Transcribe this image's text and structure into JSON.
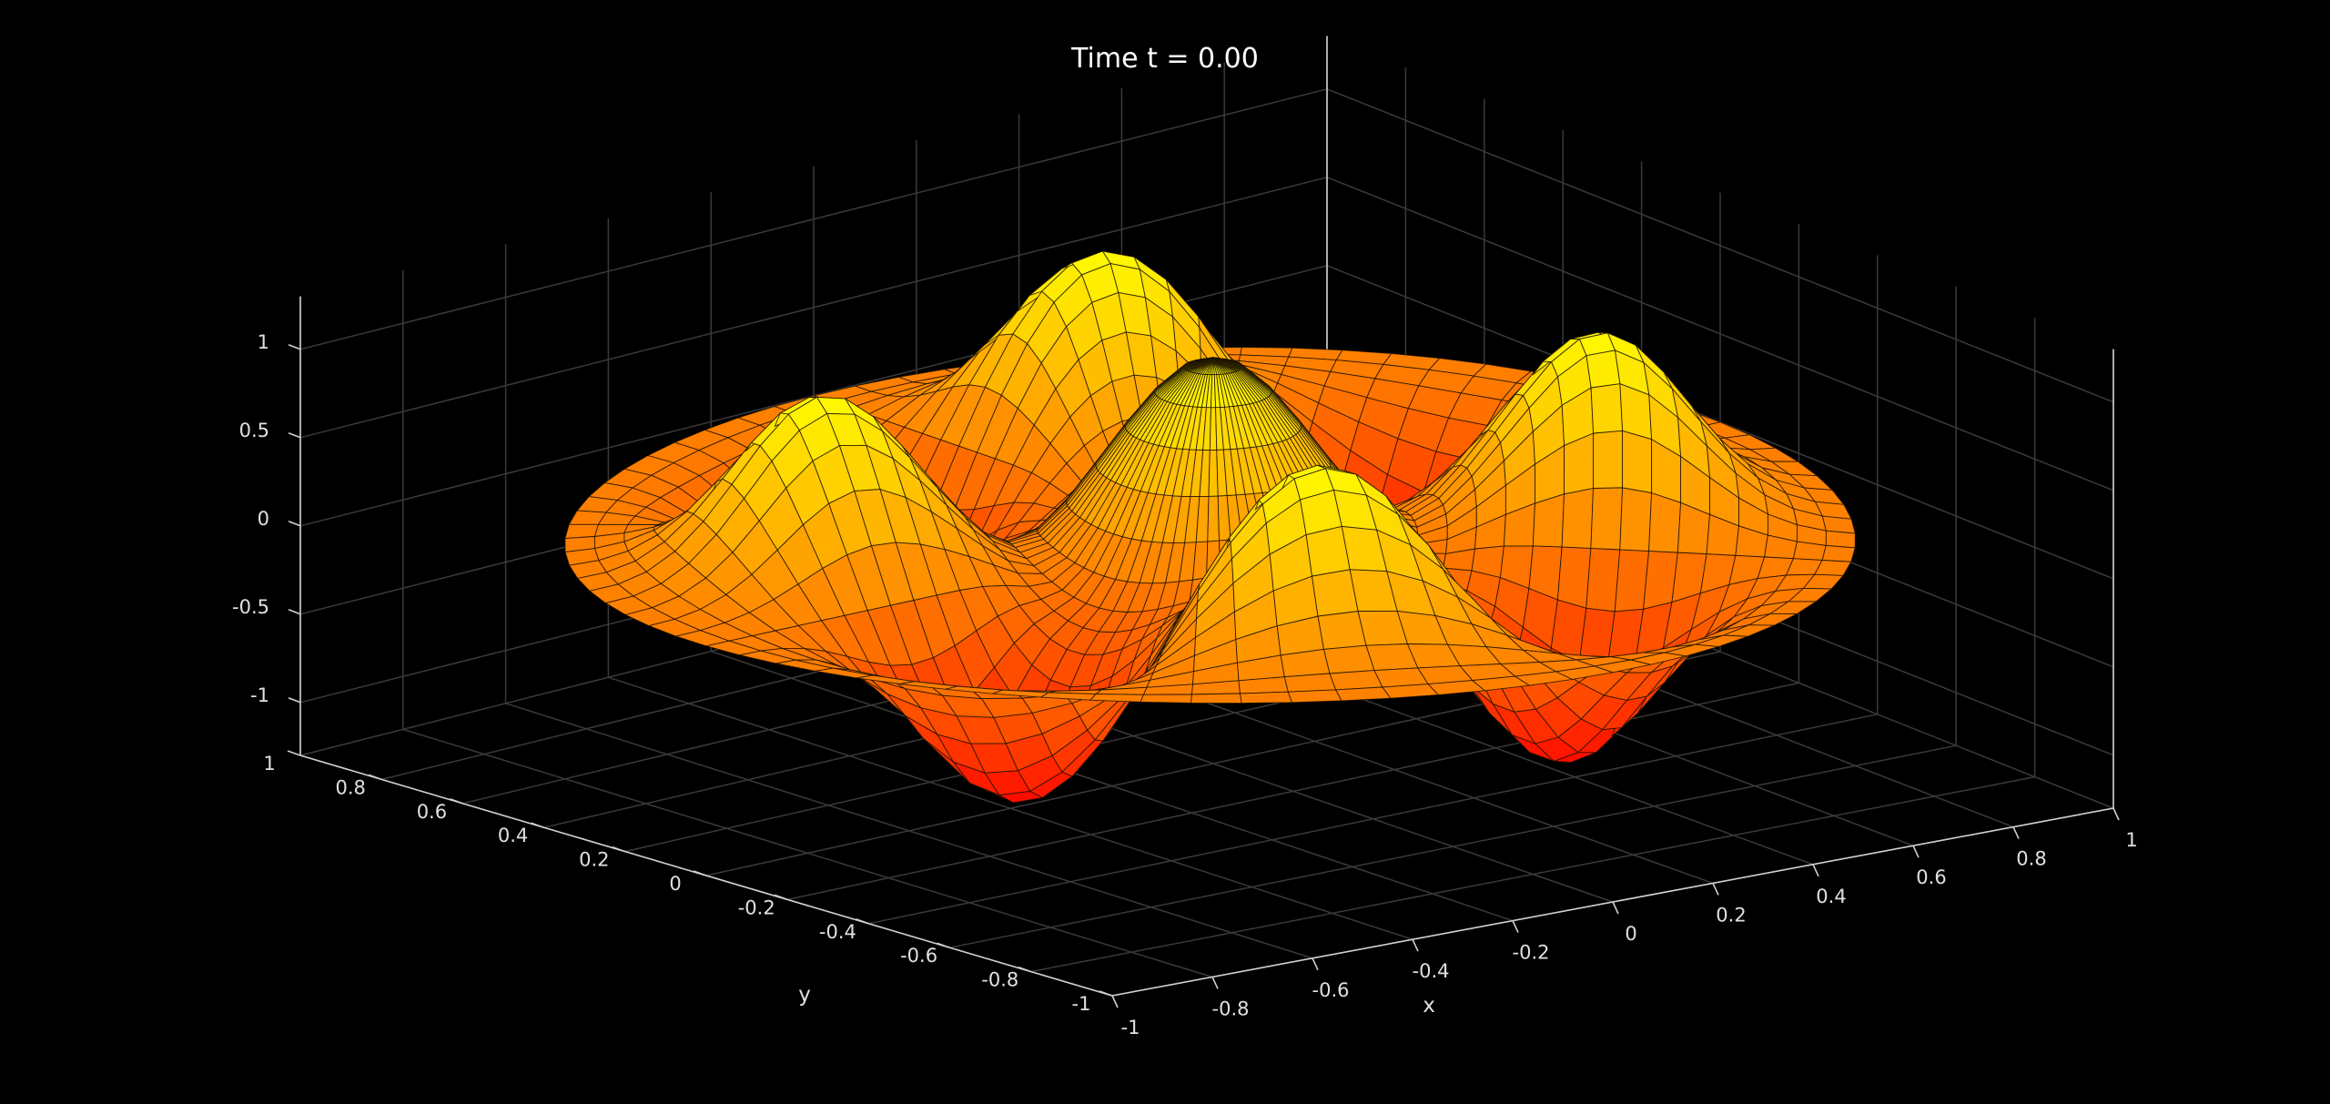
{
  "chart_data": {
    "type": "surface",
    "title": "Time t = 0.00",
    "xlabel": "x",
    "ylabel": "y",
    "zlabel": "",
    "xlim": [
      -1,
      1
    ],
    "ylim": [
      -1,
      1
    ],
    "zlim": [
      -1.3,
      1.3
    ],
    "x_ticks": [
      "-1",
      "-0.8",
      "-0.6",
      "-0.4",
      "-0.2",
      "0",
      "0.2",
      "0.4",
      "0.6",
      "0.8",
      "1"
    ],
    "y_ticks": [
      "-1",
      "-0.8",
      "-0.6",
      "-0.4",
      "-0.2",
      "0",
      "0.2",
      "0.4",
      "0.6",
      "0.8",
      "1"
    ],
    "z_ticks": [
      "-1",
      "-0.5",
      "0",
      "0.5",
      "1"
    ],
    "x_tick_values": [
      -1,
      -0.8,
      -0.6,
      -0.4,
      -0.2,
      0,
      0.2,
      0.4,
      0.6,
      0.8,
      1
    ],
    "y_tick_values": [
      -1,
      -0.8,
      -0.6,
      -0.4,
      -0.2,
      0,
      0.2,
      0.4,
      0.6,
      0.8,
      1
    ],
    "z_tick_values": [
      -1,
      -0.5,
      0,
      0.5,
      1
    ],
    "surface": {
      "domain": "unit disk",
      "radial_samples": 22,
      "angular_samples": 80,
      "center_peak_z": 1.0,
      "outer_ring_peaks_z": 1.0,
      "outer_ring_troughs_z": -1.0,
      "outer_ring_lobes": 8,
      "rim_z": 0.0
    },
    "grid": true,
    "colormap": "autumn",
    "colors": {
      "background": "#000000",
      "grid": "#3a3a3a",
      "axis": "#d0d0d0",
      "low": "#ff0000",
      "high": "#ffff00",
      "mesh_edge": "#1a1000"
    }
  }
}
